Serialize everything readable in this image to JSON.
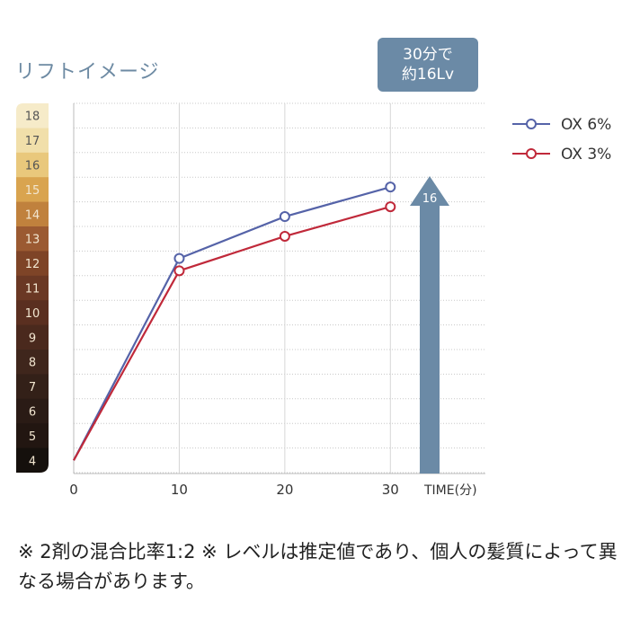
{
  "title": "リフトイメージ",
  "callout": {
    "line1": "30分で",
    "line2": "約16Lv"
  },
  "note": "※ 2剤の混合比率1:2 ※ レベルは推定値であり、個人の髪質によって異なる場合があります。",
  "colors": {
    "ox6": "#5563a8",
    "ox3": "#c0293a",
    "arrow": "#6b8aa6",
    "grid": "#c8c8c8"
  },
  "level_scale": {
    "levels": [
      18,
      17,
      16,
      15,
      14,
      13,
      12,
      11,
      10,
      9,
      8,
      7,
      6,
      5,
      4
    ],
    "colors": [
      "#f6ebc9",
      "#f1dfaa",
      "#e9c87c",
      "#d9a44f",
      "#c0813d",
      "#9b5a32",
      "#7e4427",
      "#6a3824",
      "#5a2f20",
      "#4a291d",
      "#3f261c",
      "#332018",
      "#2a1b15",
      "#221611",
      "#15100c"
    ]
  },
  "chart_data": {
    "type": "line",
    "x": [
      0,
      10,
      20,
      30
    ],
    "xlabel": "TIME(分)",
    "ylim": [
      4,
      18.5
    ],
    "yticks": [
      4,
      5,
      6,
      7,
      8,
      9,
      10,
      11,
      12,
      13,
      14,
      15,
      16,
      17,
      18
    ],
    "series": [
      {
        "name": "OX 6%",
        "values": [
          4,
          12.2,
          13.9,
          15.1
        ]
      },
      {
        "name": "OX 3%",
        "values": [
          4,
          11.7,
          13.1,
          14.3
        ]
      }
    ],
    "annotation": {
      "label": "16",
      "value": 16
    },
    "legend": "top-right",
    "grid": true
  }
}
